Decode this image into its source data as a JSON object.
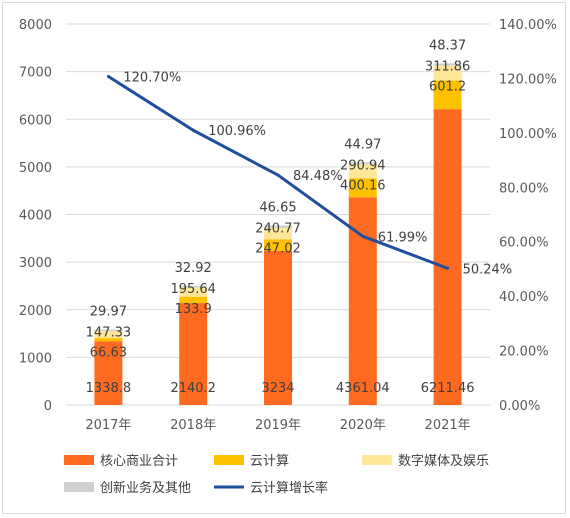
{
  "chart_data": {
    "type": "bar",
    "stacked": true,
    "categories": [
      "2017年",
      "2018年",
      "2019年",
      "2020年",
      "2021年"
    ],
    "series": [
      {
        "name": "核心商业合计",
        "values": [
          1338.8,
          2140.2,
          3234,
          4361.04,
          6211.46
        ],
        "color": "#FF6A21",
        "labels": [
          "1338.8",
          "2140.2",
          "3234",
          "4361.04",
          "6211.46"
        ]
      },
      {
        "name": "云计算",
        "values": [
          66.63,
          133.9,
          247.02,
          400.16,
          601.2
        ],
        "color": "#FFC000",
        "labels": [
          "66.63",
          "133.9",
          "247.02",
          "400.16",
          "601.2"
        ]
      },
      {
        "name": "数字媒体及娱乐",
        "values": [
          147.33,
          195.64,
          240.77,
          290.94,
          311.86
        ],
        "color": "#FFE699",
        "labels": [
          "147.33",
          "195.64",
          "240.77",
          "290.94",
          "311.86"
        ]
      },
      {
        "name": "创新业务及其他",
        "values": [
          29.97,
          32.92,
          46.65,
          44.97,
          48.37
        ],
        "color": "#D0D0D0",
        "labels": [
          "29.97",
          "32.92",
          "46.65",
          "44.97",
          "48.37"
        ]
      }
    ],
    "line_series": {
      "name": "云计算增长率",
      "values": [
        120.7,
        100.96,
        84.48,
        61.99,
        50.24
      ],
      "labels": [
        "120.70%",
        "100.96%",
        "84.48%",
        "61.99%",
        "50.24%"
      ],
      "color": "#1F4E9C",
      "axis": "right"
    },
    "y_left": {
      "min": 0,
      "max": 8000,
      "ticks": [
        "0",
        "1000",
        "2000",
        "3000",
        "4000",
        "5000",
        "6000",
        "7000",
        "8000"
      ]
    },
    "y_right": {
      "min": 0,
      "max": 140,
      "ticks": [
        "0.00%",
        "20.00%",
        "40.00%",
        "60.00%",
        "80.00%",
        "100.00%",
        "120.00%",
        "140.00%"
      ]
    },
    "grid": true,
    "legend_position": "bottom",
    "title": "",
    "xlabel": "",
    "ylabel": ""
  },
  "legend": {
    "items": [
      {
        "label": "核心商业合计",
        "color": "#FF6A21",
        "kind": "box"
      },
      {
        "label": "云计算",
        "color": "#FFC000",
        "kind": "box"
      },
      {
        "label": "数字媒体及娱乐",
        "color": "#FFE699",
        "kind": "box"
      },
      {
        "label": "创新业务及其他",
        "color": "#D0D0D0",
        "kind": "box"
      },
      {
        "label": "云计算增长率",
        "color": "#1F4E9C",
        "kind": "line"
      }
    ]
  }
}
